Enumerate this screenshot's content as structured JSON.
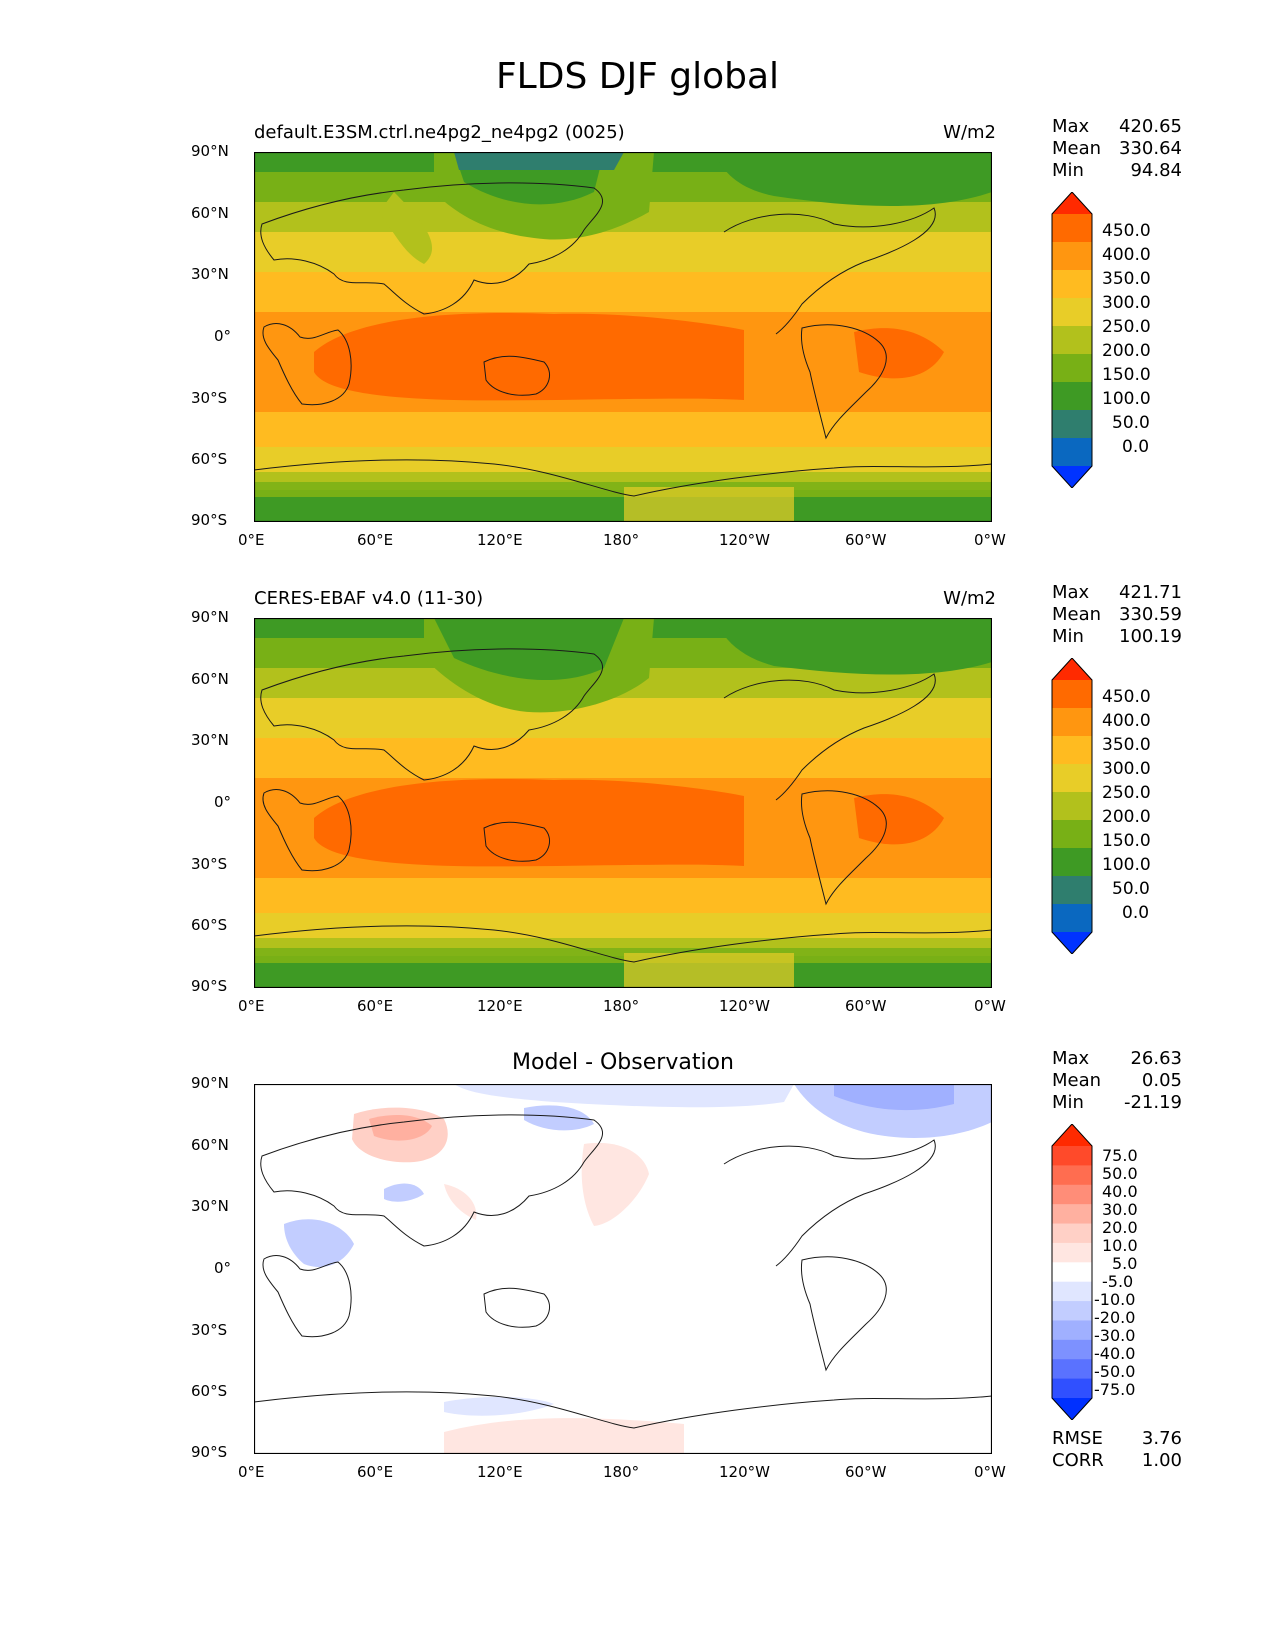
{
  "figure": {
    "title": "FLDS DJF global"
  },
  "axes": {
    "lat_ticks": [
      "90°N",
      "60°N",
      "30°N",
      "0°",
      "30°S",
      "60°S",
      "90°S"
    ],
    "lon_ticks": [
      "0°E",
      "60°E",
      "120°E",
      "180°",
      "120°W",
      "60°W",
      "0°W"
    ]
  },
  "colorbar_main": {
    "levels": [
      "450.0",
      "400.0",
      "350.0",
      "300.0",
      "250.0",
      "200.0",
      "150.0",
      "100.0",
      "50.0",
      "0.0"
    ],
    "colors": [
      "#ff2a00",
      "#ff6a00",
      "#ff9610",
      "#ffbb20",
      "#e8cd28",
      "#b2c11c",
      "#78b016",
      "#3e9a24",
      "#2f7e6e",
      "#0a68c0",
      "#0033ff"
    ]
  },
  "colorbar_diff": {
    "levels": [
      "75.0",
      "50.0",
      "40.0",
      "30.0",
      "20.0",
      "10.0",
      "5.0",
      "-5.0",
      "-10.0",
      "-20.0",
      "-30.0",
      "-40.0",
      "-50.0",
      "-75.0"
    ],
    "colors": [
      "#ff2a00",
      "#ff4a2a",
      "#ff6d50",
      "#ff8d78",
      "#ffb0a0",
      "#ffd0c6",
      "#ffe6e1",
      "#ffffff",
      "#e0e6ff",
      "#c2cdff",
      "#a0b0ff",
      "#7d91ff",
      "#5a72ff",
      "#3050ff",
      "#0030ff"
    ]
  },
  "panels": [
    {
      "title": "default.E3SM.ctrl.ne4pg2_ne4pg2 (0025)",
      "units": "W/m2",
      "stats": {
        "max_label": "Max",
        "max": "420.65",
        "mean_label": "Mean",
        "mean": "330.64",
        "min_label": "Min",
        "min": "94.84"
      }
    },
    {
      "title": "CERES-EBAF v4.0 (11-30)",
      "units": "W/m2",
      "stats": {
        "max_label": "Max",
        "max": "421.71",
        "mean_label": "Mean",
        "mean": "330.59",
        "min_label": "Min",
        "min": "100.19"
      }
    },
    {
      "title": "Model - Observation",
      "stats": {
        "max_label": "Max",
        "max": "26.63",
        "mean_label": "Mean",
        "mean": "0.05",
        "min_label": "Min",
        "min": "-21.19"
      },
      "metrics": {
        "rmse_label": "RMSE",
        "rmse": "3.76",
        "corr_label": "CORR",
        "corr": "1.00"
      }
    }
  ]
}
